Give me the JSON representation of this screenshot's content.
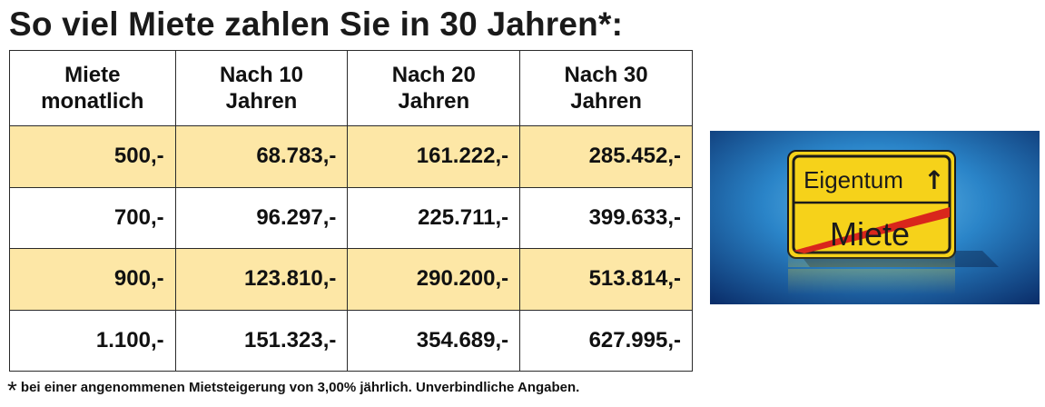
{
  "title": "So viel Miete zahlen Sie in 30 Jahren*:",
  "table": {
    "headers": [
      [
        "Miete",
        "monatlich"
      ],
      [
        "Nach 10",
        "Jahren"
      ],
      [
        "Nach 20",
        "Jahren"
      ],
      [
        "Nach 30",
        "Jahren"
      ]
    ],
    "rows": [
      [
        "500,-",
        "68.783,-",
        "161.222,-",
        "285.452,-"
      ],
      [
        "700,-",
        "96.297,-",
        "225.711,-",
        "399.633,-"
      ],
      [
        "900,-",
        "123.810,-",
        "290.200,-",
        "513.814,-"
      ],
      [
        "1.100,-",
        "151.323,-",
        "354.689,-",
        "627.995,-"
      ]
    ],
    "row_colors": [
      "#fde7a6",
      "#ffffff",
      "#fde7a6",
      "#ffffff"
    ]
  },
  "footnote": {
    "marker": "*",
    "text": "bei einer angenommenen Mietsteigerung von 3,00% jährlich. Unverbindliche Angaben."
  },
  "sign": {
    "top_text": "Eigentum",
    "top_arrow": "↑",
    "bottom_text": "Miete",
    "background_color": "#1f6fb4",
    "sign_color": "#f6d21a",
    "strike_color": "#d9261c"
  }
}
